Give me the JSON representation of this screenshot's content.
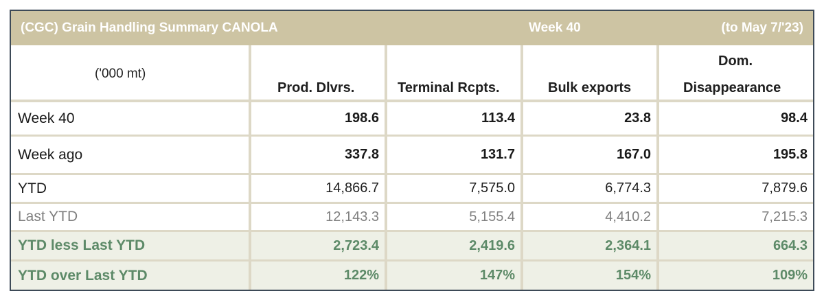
{
  "title": {
    "left": "(CGC) Grain Handling Summary CANOLA",
    "middle": "Week 40",
    "right": "(to May 7/'23)"
  },
  "header": {
    "unit": "('000 mt)",
    "col1": "Prod. Dlvrs.",
    "col2": "Terminal Rcpts.",
    "col3": "Bulk exports",
    "col4_line1": "Dom.",
    "col4_line2": "Disappearance"
  },
  "rows": [
    {
      "label": "Week 40",
      "values": [
        "198.6",
        "113.4",
        "23.8",
        "98.4"
      ]
    },
    {
      "label": "Week ago",
      "values": [
        "337.8",
        "131.7",
        "167.0",
        "195.8"
      ]
    },
    {
      "label": "YTD",
      "values": [
        "14,866.7",
        "7,575.0",
        "6,774.3",
        "7,879.6"
      ]
    },
    {
      "label": "Last YTD",
      "values": [
        "12,143.3",
        "5,155.4",
        "4,410.2",
        "7,215.3"
      ]
    },
    {
      "label": "YTD less Last YTD",
      "values": [
        "2,723.4",
        "2,419.6",
        "2,364.1",
        "664.3"
      ]
    },
    {
      "label": "YTD over Last YTD",
      "values": [
        "122%",
        "147%",
        "154%",
        "109%"
      ]
    }
  ],
  "colors": {
    "title_bg": "#cdc4a3",
    "grid": "#ddd8c6",
    "green_text": "#5d8a68",
    "green_row_bg": "#eef0e6",
    "border": "#3d4a57"
  }
}
